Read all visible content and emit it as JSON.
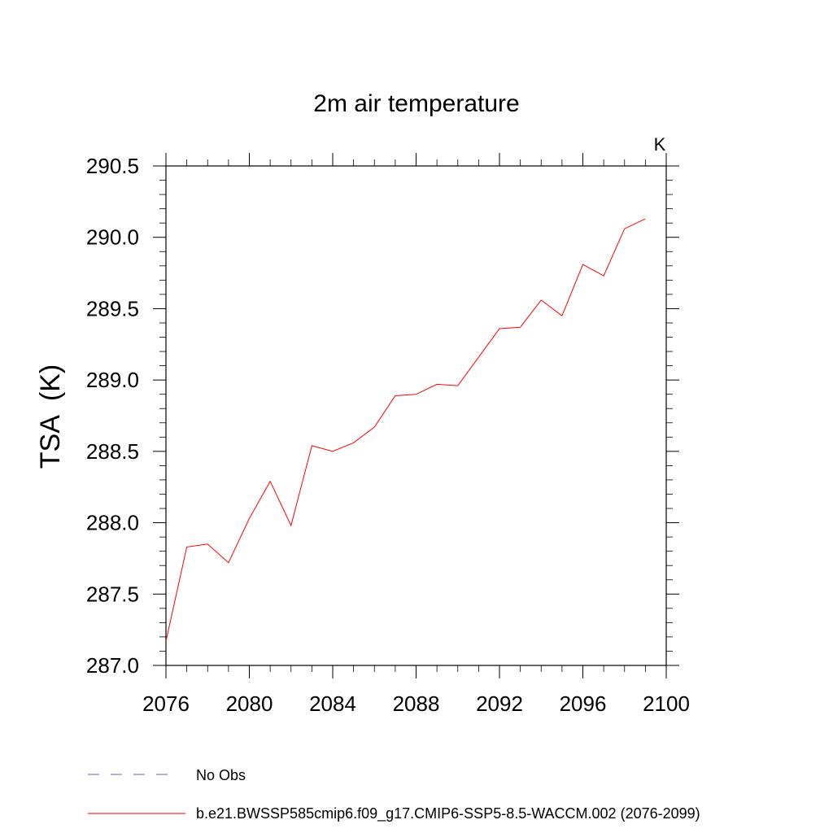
{
  "chart_data": {
    "type": "line",
    "title": "2m air temperature",
    "units_label": "K",
    "xlabel": "",
    "ylabel": "TSA  (K)",
    "xlim": [
      2076,
      2100
    ],
    "ylim": [
      287.0,
      290.5
    ],
    "x_ticks": [
      2076,
      2080,
      2084,
      2088,
      2092,
      2096,
      2100
    ],
    "x_tick_labels": [
      "2076",
      "2080",
      "2084",
      "2088",
      "2092",
      "2096",
      "2100"
    ],
    "y_ticks": [
      287.0,
      287.5,
      288.0,
      288.5,
      289.0,
      289.5,
      290.0,
      290.5
    ],
    "y_tick_labels": [
      "287.0",
      "287.5",
      "288.0",
      "288.5",
      "289.0",
      "289.5",
      "290.0",
      "290.5"
    ],
    "grid": false,
    "series": [
      {
        "name": "b.e21.BWSSP585cmip6.f09_g17.CMIP6-SSP5-8.5-WACCM.002 (2076-2099)",
        "color": "#ff0000",
        "x": [
          2076,
          2077,
          2078,
          2079,
          2080,
          2081,
          2082,
          2083,
          2084,
          2085,
          2086,
          2087,
          2088,
          2089,
          2090,
          2091,
          2092,
          2093,
          2094,
          2095,
          2096,
          2097,
          2098,
          2099
        ],
        "y": [
          287.17,
          287.83,
          287.85,
          287.72,
          288.03,
          288.29,
          287.98,
          288.54,
          288.5,
          288.56,
          288.67,
          288.89,
          288.9,
          288.97,
          288.96,
          289.16,
          289.36,
          289.37,
          289.56,
          289.45,
          289.81,
          289.73,
          290.06,
          290.13
        ]
      }
    ],
    "legend": {
      "placement": "bottom",
      "entries": [
        {
          "label": "No Obs",
          "color": "#6a5acd",
          "style": "dashed"
        },
        {
          "label": "b.e21.BWSSP585cmip6.f09_g17.CMIP6-SSP5-8.5-WACCM.002 (2076-2099)",
          "color": "#ff0000",
          "style": "solid"
        }
      ]
    }
  }
}
